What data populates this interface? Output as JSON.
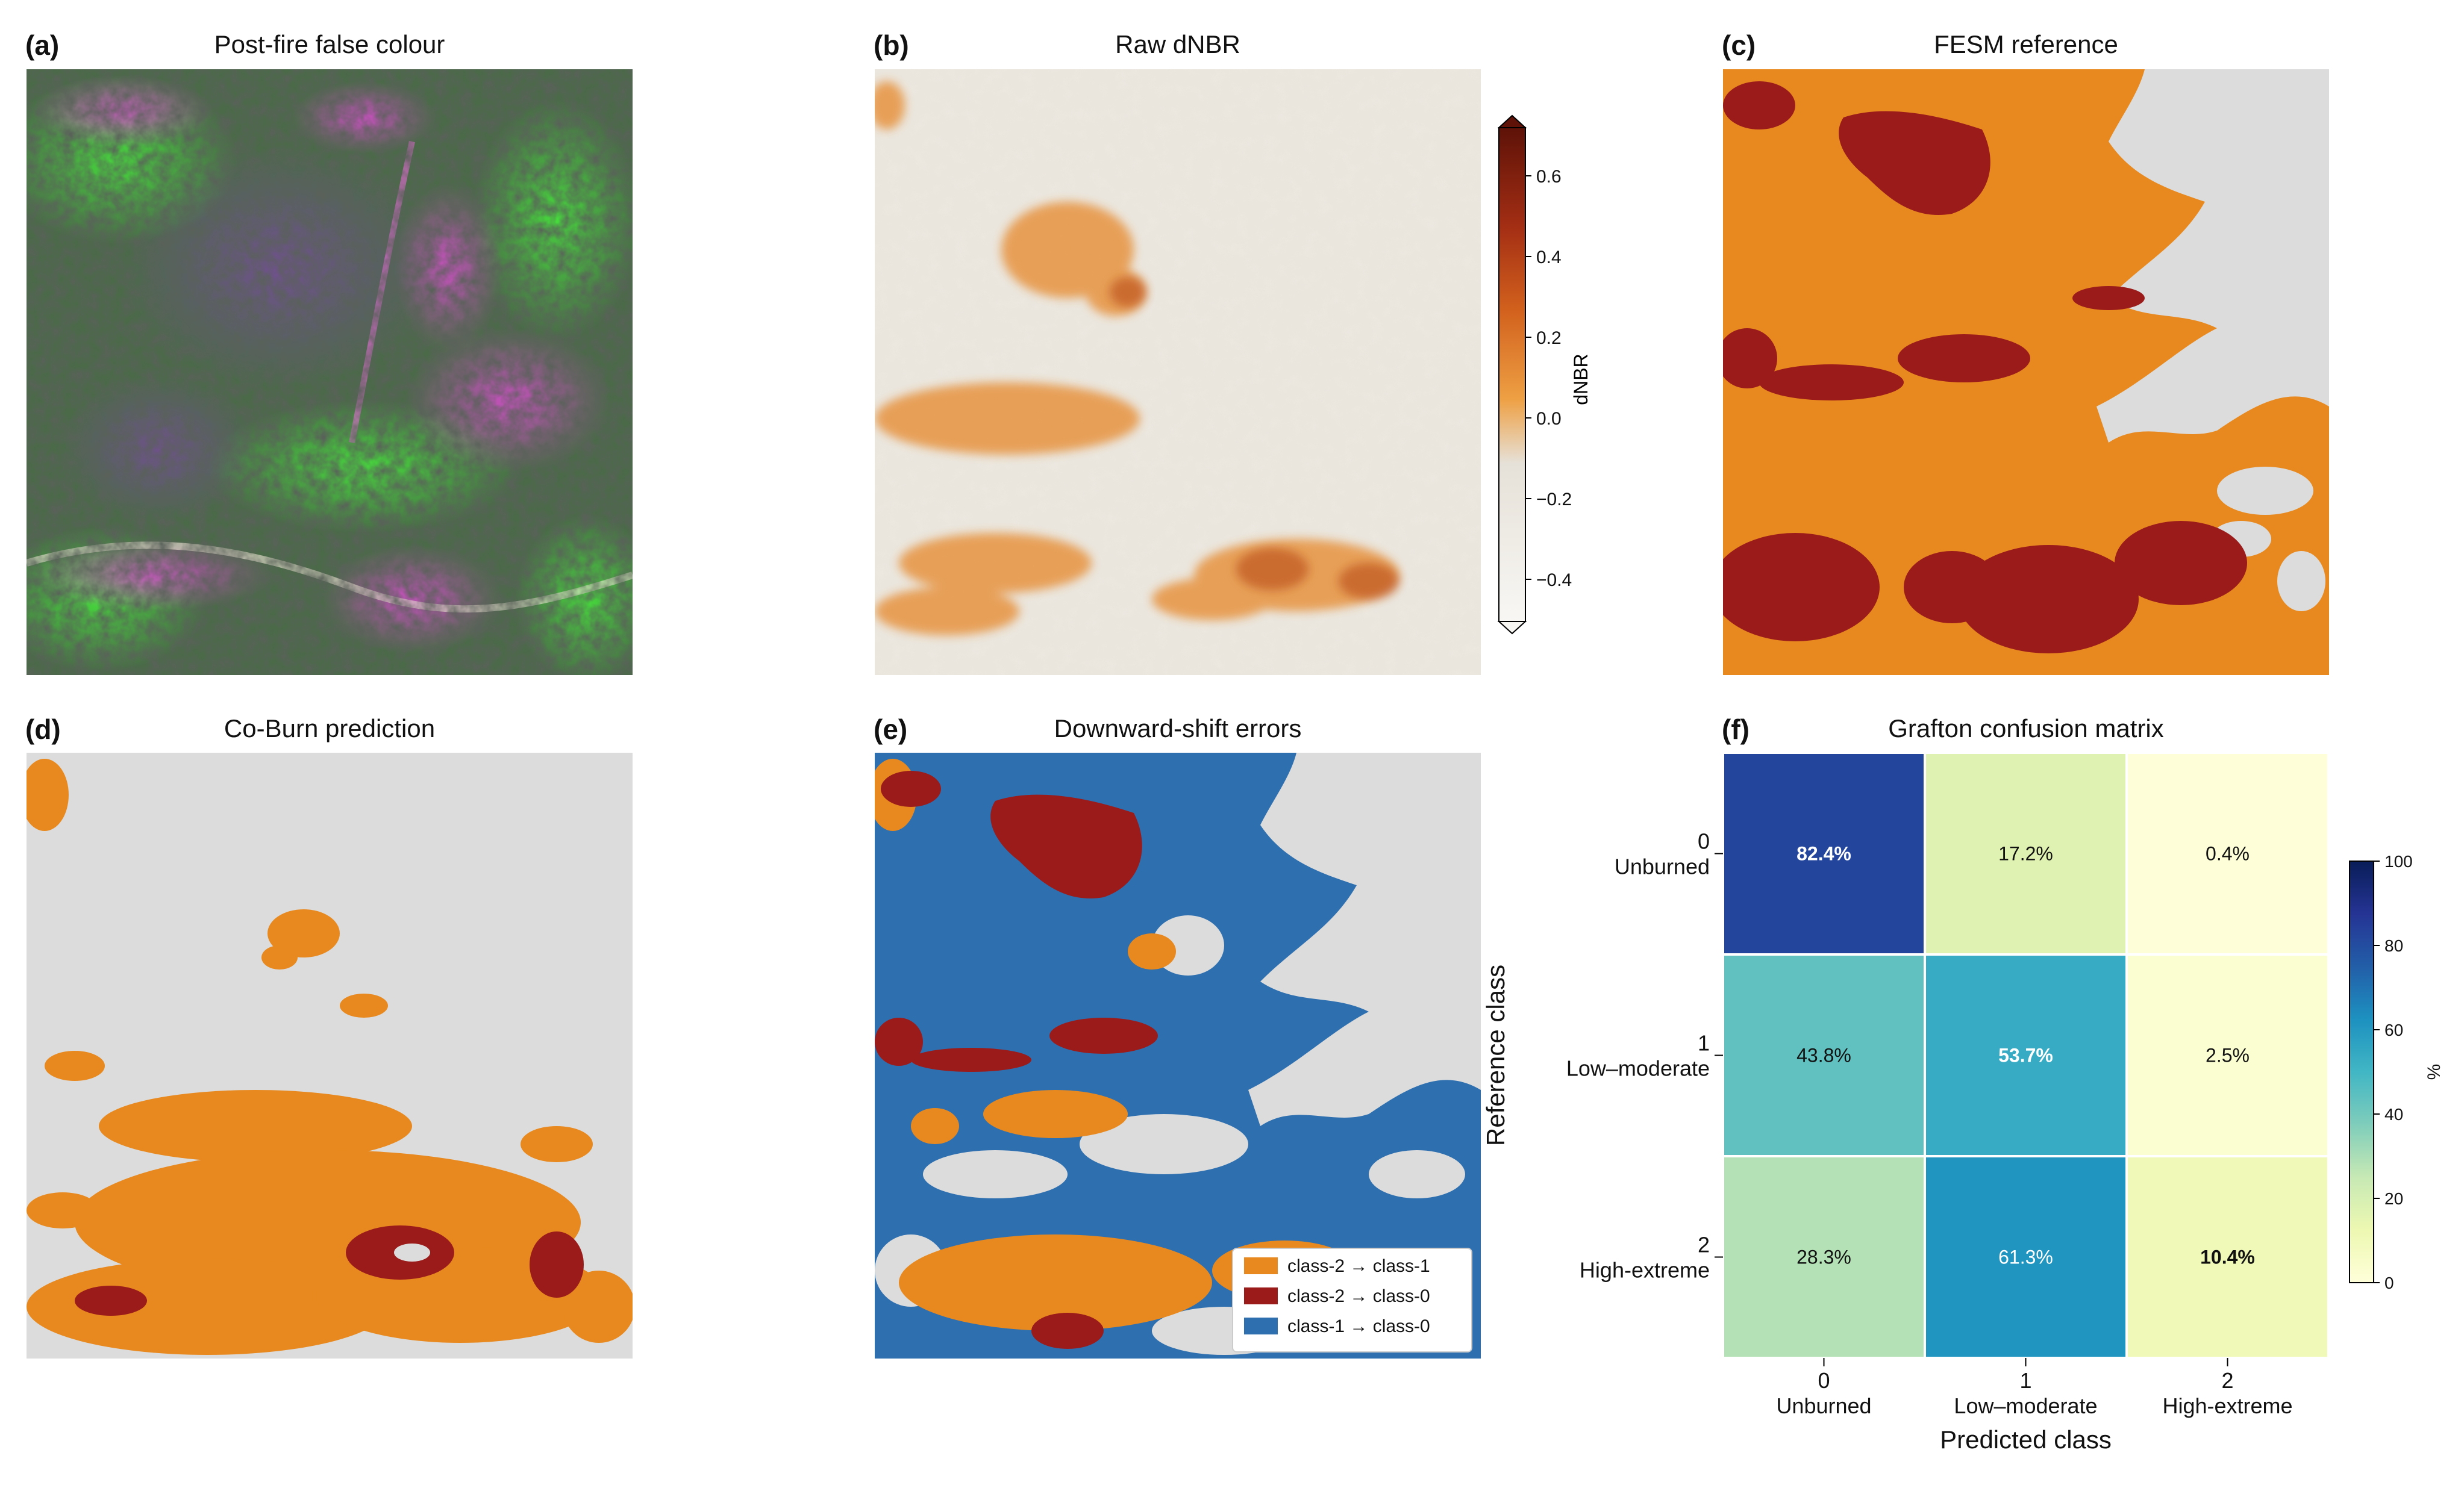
{
  "panels": {
    "a": {
      "label": "(a)",
      "title": "Post-fire false colour"
    },
    "b": {
      "label": "(b)",
      "title": "Raw dNBR"
    },
    "c": {
      "label": "(c)",
      "title": "FESM reference"
    },
    "d": {
      "label": "(d)",
      "title": "Co-Burn prediction"
    },
    "e": {
      "label": "(e)",
      "title": "Downward-shift errors"
    },
    "f": {
      "label": "(f)",
      "title": "Grafton confusion matrix"
    }
  },
  "colorbar_dnbr": {
    "label": "dNBR",
    "ticks": [
      "0.6",
      "0.4",
      "0.2",
      "0.0",
      "−0.2",
      "−0.4"
    ],
    "colors": {
      "high": "#7a1a10",
      "mid": "#e8952e",
      "zero": "#e6e1d8",
      "low": "#f7f5f1"
    }
  },
  "class_colors": {
    "unburned": "#dcdcdc",
    "low_moderate": "#e8891f",
    "high_extreme": "#9b1b1b"
  },
  "legend_e": {
    "items": [
      {
        "label": "class-2 → class-1",
        "color": "#e8891f"
      },
      {
        "label": "class-2 → class-0",
        "color": "#9b1b1b"
      },
      {
        "label": "class-1 → class-0",
        "color": "#2e6fb0"
      }
    ]
  },
  "chart_data": {
    "type": "heatmap",
    "title": "Grafton confusion matrix",
    "xlabel": "Predicted class",
    "ylabel": "Reference class",
    "x_ticks": [
      {
        "num": "0",
        "name": "Unburned"
      },
      {
        "num": "1",
        "name": "Low–moderate"
      },
      {
        "num": "2",
        "name": "High-extreme"
      }
    ],
    "y_ticks": [
      {
        "num": "0",
        "name": "Unburned"
      },
      {
        "num": "1",
        "name": "Low–moderate"
      },
      {
        "num": "2",
        "name": "High-extreme"
      }
    ],
    "values": [
      [
        82.4,
        17.2,
        0.4
      ],
      [
        43.8,
        53.7,
        2.5
      ],
      [
        28.3,
        61.3,
        10.4
      ]
    ],
    "cell_labels": [
      [
        "82.4%",
        "17.2%",
        "0.4%"
      ],
      [
        "43.8%",
        "53.7%",
        "2.5%"
      ],
      [
        "28.3%",
        "61.3%",
        "10.4%"
      ]
    ],
    "colorbar": {
      "label": "%",
      "range": [
        0,
        100
      ],
      "ticks": [
        "100",
        "80",
        "60",
        "40",
        "20",
        "0"
      ],
      "colormap": "YlGnBu"
    }
  }
}
